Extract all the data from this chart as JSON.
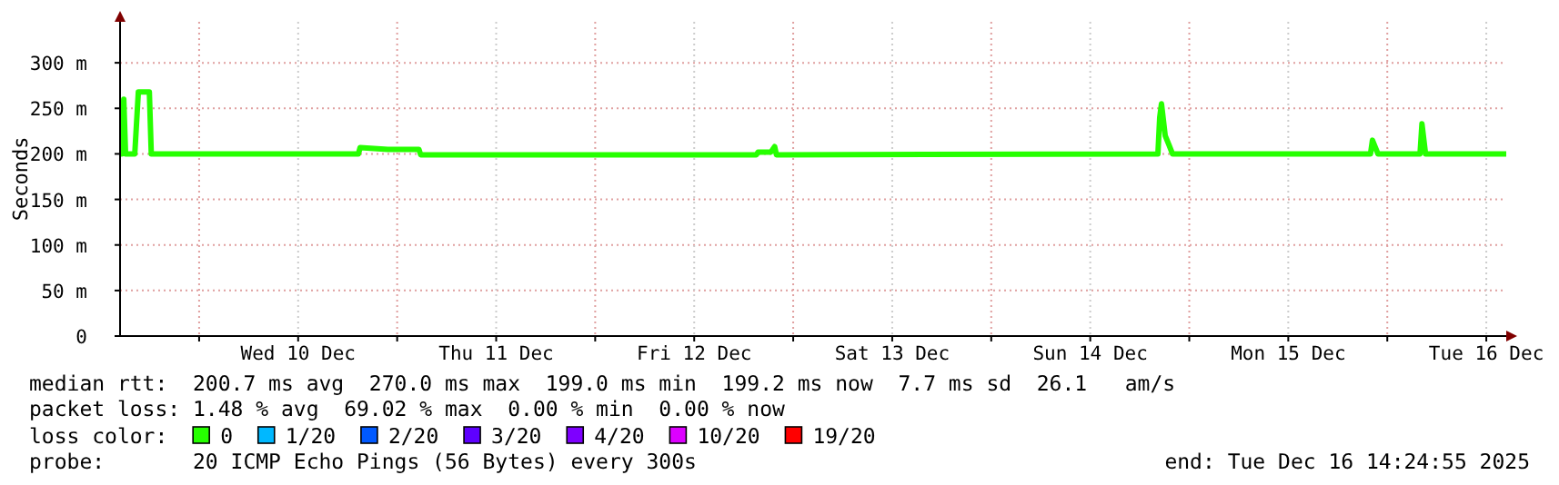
{
  "chart_data": {
    "type": "line",
    "ylabel": "Seconds",
    "x": [
      "2025-12-09T14:25",
      "2025-12-09T14:38",
      "2025-12-09T14:52",
      "2025-12-09T15:05",
      "2025-12-09T16:12",
      "2025-12-09T16:38",
      "2025-12-09T17:58",
      "2025-12-09T18:12",
      "2025-12-10T19:18",
      "2025-12-10T19:31",
      "2025-12-10T22:52",
      "2025-12-11T02:38",
      "2025-12-11T02:51",
      "2025-12-12T19:32",
      "2025-12-12T19:45",
      "2025-12-12T21:18",
      "2025-12-12T21:45",
      "2025-12-12T21:58",
      "2025-12-14T20:12",
      "2025-12-14T20:25",
      "2025-12-14T20:38",
      "2025-12-14T21:05",
      "2025-12-14T21:32",
      "2025-12-14T21:58",
      "2025-12-15T21:58",
      "2025-12-15T22:12",
      "2025-12-15T22:52",
      "2025-12-16T03:58",
      "2025-12-16T04:12",
      "2025-12-16T04:38",
      "2025-12-16T14:25"
    ],
    "series": [
      {
        "color": "#26ff00",
        "values": [
          200,
          200,
          260,
          200,
          200,
          268,
          268,
          200,
          200,
          207,
          205,
          205,
          199,
          199,
          202,
          202,
          208,
          199,
          200,
          240,
          255,
          220,
          210,
          200,
          200,
          215,
          200,
          200,
          233,
          200,
          200
        ]
      },
      {
        "name": "0",
        "color": "#26ff00",
        "values": [
          null,
          null,
          null,
          null,
          null,
          null,
          null,
          null,
          null,
          null,
          null,
          null,
          null,
          null,
          null,
          null,
          null,
          null,
          null,
          null,
          null,
          null,
          null,
          null,
          null,
          null,
          null,
          null,
          null,
          null,
          null
        ]
      },
      {
        "name": "1/20",
        "color": "#00b8ff",
        "values": [
          null,
          null,
          null,
          null,
          null,
          null,
          null,
          null,
          null,
          null,
          null,
          null,
          null,
          null,
          null,
          null,
          null,
          null,
          null,
          null,
          null,
          null,
          null,
          null,
          null,
          null,
          null,
          null,
          null,
          null,
          null
        ]
      },
      {
        "name": "2/20",
        "color": "#0059ff",
        "values": [
          null,
          null,
          null,
          null,
          null,
          null,
          null,
          null,
          null,
          null,
          null,
          null,
          null,
          null,
          null,
          null,
          null,
          null,
          null,
          null,
          null,
          null,
          null,
          null,
          null,
          null,
          null,
          null,
          null,
          null,
          null
        ]
      },
      {
        "name": "3/20",
        "color": "#5e00ff",
        "values": [
          null,
          null,
          null,
          null,
          null,
          null,
          null,
          null,
          null,
          null,
          null,
          null,
          null,
          null,
          null,
          null,
          null,
          null,
          null,
          null,
          null,
          null,
          null,
          null,
          null,
          null,
          null,
          null,
          null,
          null,
          null
        ]
      },
      {
        "name": "4/20",
        "color": "#7e00ff",
        "values": [
          null,
          null,
          null,
          null,
          null,
          null,
          null,
          null,
          null,
          null,
          null,
          null,
          null,
          null,
          null,
          null,
          null,
          null,
          null,
          null,
          null,
          null,
          null,
          null,
          null,
          null,
          null,
          null,
          null,
          null,
          null
        ]
      },
      {
        "name": "10/20",
        "color": "#dd00ff",
        "values": [
          null,
          null,
          null,
          null,
          null,
          null,
          null,
          null,
          null,
          null,
          null,
          null,
          null,
          null,
          null,
          null,
          null,
          null,
          null,
          null,
          null,
          null,
          null,
          null,
          null,
          null,
          null,
          null,
          null,
          null,
          null
        ]
      },
      {
        "name": "19/20",
        "color": "#ff0000",
        "values": [
          null,
          null,
          null,
          null,
          null,
          null,
          null,
          null,
          null,
          null,
          null,
          null,
          null,
          null,
          null,
          null,
          null,
          null,
          null,
          null,
          null,
          null,
          null,
          null,
          null,
          null,
          null,
          null,
          null,
          null,
          null
        ]
      }
    ],
    "xlim": [
      "2025-12-09T14:25",
      "2025-12-16T14:25"
    ],
    "xticks": [
      {
        "value": "2025-12-10T00:00",
        "label": null
      },
      {
        "value": "2025-12-10T12:00",
        "label": "Wed 10 Dec"
      },
      {
        "value": "2025-12-11T00:00",
        "label": null
      },
      {
        "value": "2025-12-11T12:00",
        "label": "Thu 11 Dec"
      },
      {
        "value": "2025-12-12T00:00",
        "label": null
      },
      {
        "value": "2025-12-12T12:00",
        "label": "Fri 12 Dec"
      },
      {
        "value": "2025-12-13T00:00",
        "label": null
      },
      {
        "value": "2025-12-13T12:00",
        "label": "Sat 13 Dec"
      },
      {
        "value": "2025-12-14T00:00",
        "label": null
      },
      {
        "value": "2025-12-14T12:00",
        "label": "Sun 14 Dec"
      },
      {
        "value": "2025-12-15T00:00",
        "label": null
      },
      {
        "value": "2025-12-15T12:00",
        "label": "Mon 15 Dec"
      },
      {
        "value": "2025-12-16T00:00",
        "label": null
      },
      {
        "value": "2025-12-16T12:00",
        "label": "Tue 16 Dec"
      }
    ],
    "ylim": [
      0,
      345
    ],
    "yticks": [
      {
        "value": 0,
        "label": "0"
      },
      {
        "value": 50,
        "label": "50 m"
      },
      {
        "value": 100,
        "label": "100 m"
      },
      {
        "value": 150,
        "label": "150 m"
      },
      {
        "value": 200,
        "label": "200 m"
      },
      {
        "value": 250,
        "label": "250 m"
      },
      {
        "value": 300,
        "label": "300 m"
      }
    ],
    "grid": true,
    "legend": "bottom",
    "legend_title": "loss color:",
    "line_style": "solid",
    "annotations": [
      "median rtt:  200.7 ms avg  270.0 ms max  199.0 ms min  199.2 ms now  7.7 ms sd  26.1   am/s",
      "packet loss: 1.48 % avg  69.02 % max  0.00 % min  0.00 % now",
      "probe:       20 ICMP Echo Pings (56 Bytes) every 300s",
      "end: Tue Dec 16 14:24:55 2025"
    ]
  }
}
